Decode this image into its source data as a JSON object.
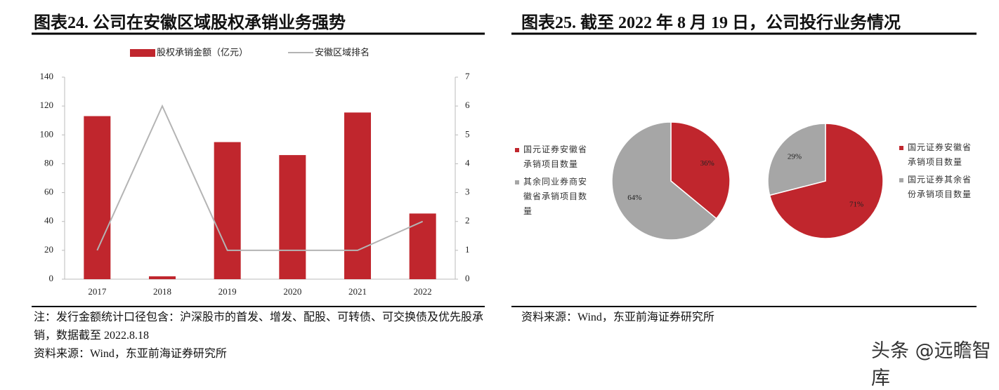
{
  "chart_data": [
    {
      "type": "bar",
      "title": "图表24. 公司在安徽区域股权承销业务强势",
      "categories": [
        "2017",
        "2018",
        "2019",
        "2020",
        "2021",
        "2022"
      ],
      "series": [
        {
          "name": "股权承销金额（亿元）",
          "color": "#c0262d",
          "type": "bar",
          "values": [
            113,
            2,
            95,
            86,
            115.5,
            45.5
          ]
        },
        {
          "name": "安徽区域排名",
          "color": "#b4b4b4",
          "type": "line",
          "axis": "y2",
          "values": [
            1,
            6,
            1,
            1,
            1,
            2
          ]
        }
      ],
      "ylim": [
        0,
        140
      ],
      "yticks": [
        0,
        20,
        40,
        60,
        80,
        100,
        120,
        140
      ],
      "y2lim": [
        0,
        7
      ],
      "y2ticks": [
        0,
        1,
        2,
        3,
        4,
        5,
        6,
        7
      ],
      "legend": "top",
      "note": "注：发行金额统计口径包含：沪深股市的首发、增发、配股、可转债、可交换债及优先股承销，数据截至 2022.8.18",
      "source": "资料来源：Wind，东亚前海证券研究所"
    },
    {
      "type": "pie",
      "title": "图表25. 截至 2022 年 8 月 19 日，公司投行业务情况",
      "categories": [
        "国元证券安徽省承销项目数量",
        "其余同业券商安徽省承销项目数量"
      ],
      "values": [
        36,
        64
      ],
      "value_labels": [
        "36%",
        "64%"
      ],
      "colors": [
        "#c0262d",
        "#a6a6a6"
      ],
      "legend": "left",
      "source": "资料来源：Wind，东亚前海证券研究所"
    },
    {
      "type": "pie",
      "categories": [
        "国元证券安徽省承销项目数量",
        "国元证券其余省份承销项目数量"
      ],
      "values": [
        71,
        29
      ],
      "value_labels": [
        "71%",
        "29%"
      ],
      "colors": [
        "#c0262d",
        "#a6a6a6"
      ],
      "legend": "right"
    }
  ],
  "watermark": "头条 @远瞻智库"
}
